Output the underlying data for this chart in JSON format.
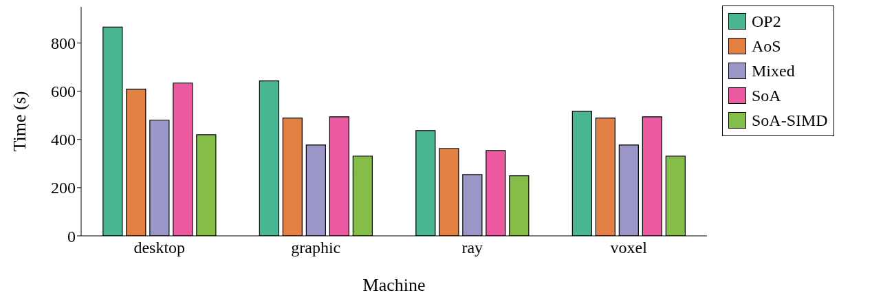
{
  "chart_data": {
    "type": "bar",
    "xlabel": "Machine",
    "ylabel": "Time (s)",
    "categories": [
      "desktop",
      "graphic",
      "ray",
      "voxel"
    ],
    "series": [
      {
        "name": "OP2",
        "color": "#4bb694",
        "values": [
          866,
          643,
          437,
          517
        ]
      },
      {
        "name": "AoS",
        "color": "#e28143",
        "values": [
          609,
          489,
          363,
          489
        ]
      },
      {
        "name": "Mixed",
        "color": "#9a96c8",
        "values": [
          480,
          377,
          254,
          377
        ]
      },
      {
        "name": "SoA",
        "color": "#eb5aa0",
        "values": [
          634,
          494,
          354,
          494
        ]
      },
      {
        "name": "SoA-SIMD",
        "color": "#84be48",
        "values": [
          420,
          331,
          249,
          331
        ]
      }
    ],
    "ylim": [
      0,
      950
    ],
    "yticks": [
      0,
      200,
      400,
      600,
      800
    ],
    "legend": "top right"
  }
}
